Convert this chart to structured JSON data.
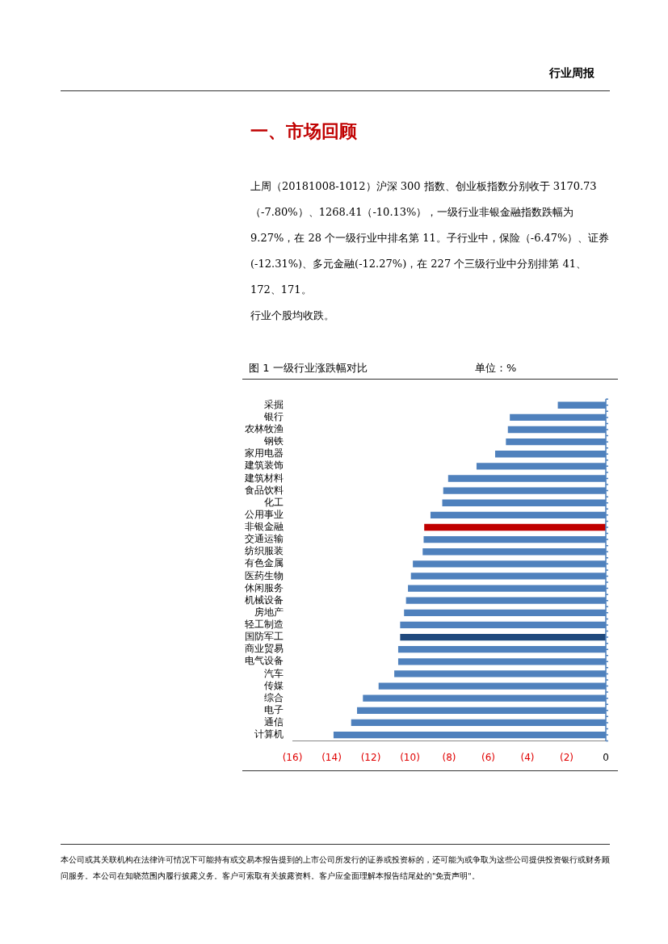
{
  "chart_data": {
    "type": "bar",
    "orientation": "horizontal",
    "title": "图 1 一级行业涨跌幅对比",
    "subtitle": "单位：%",
    "categories": [
      "采掘",
      "银行",
      "农林牧渔",
      "钢铁",
      "家用电器",
      "建筑装饰",
      "建筑材料",
      "食品饮料",
      "化工",
      "公用事业",
      "非银金融",
      "交通运输",
      "纺织服装",
      "有色金属",
      "医药生物",
      "休闲服务",
      "机械设备",
      "房地产",
      "轻工制造",
      "国防军工",
      "商业贸易",
      "电气设备",
      "汽车",
      "传媒",
      "综合",
      "电子",
      "通信",
      "计算机"
    ],
    "values": [
      -2.45,
      -4.9,
      -5.0,
      -5.1,
      -5.65,
      -6.6,
      -8.05,
      -8.3,
      -8.35,
      -8.95,
      -9.27,
      -9.3,
      -9.35,
      -9.85,
      -9.95,
      -10.1,
      -10.2,
      -10.3,
      -10.5,
      -10.5,
      -10.6,
      -10.6,
      -10.8,
      -11.6,
      -12.4,
      -12.7,
      -13.0,
      -13.9
    ],
    "colors": [
      "#4f81bd",
      "#4f81bd",
      "#4f81bd",
      "#4f81bd",
      "#4f81bd",
      "#4f81bd",
      "#4f81bd",
      "#4f81bd",
      "#4f81bd",
      "#4f81bd",
      "#c00000",
      "#4f81bd",
      "#4f81bd",
      "#4f81bd",
      "#4f81bd",
      "#4f81bd",
      "#4f81bd",
      "#4f81bd",
      "#4f81bd",
      "#1f497d",
      "#4f81bd",
      "#4f81bd",
      "#4f81bd",
      "#4f81bd",
      "#4f81bd",
      "#4f81bd",
      "#4f81bd",
      "#4f81bd"
    ],
    "xlim": [
      -16,
      0
    ],
    "xticks": [
      {
        "value": -16,
        "label": "(16)"
      },
      {
        "value": -14,
        "label": "(14)"
      },
      {
        "value": -12,
        "label": "(12)"
      },
      {
        "value": -10,
        "label": "(10)"
      },
      {
        "value": -8,
        "label": "(8)"
      },
      {
        "value": -6,
        "label": "(6)"
      },
      {
        "value": -4,
        "label": "(4)"
      },
      {
        "value": -2,
        "label": "(2)"
      },
      0
    ],
    "grid": false,
    "legend": false,
    "annotations": [
      "行业周报",
      "一、市场回顾",
      "上周（20181008-1012）沪深 300 指数、创业板指数分别收于 3170.73（-7.80%）、1268.41（-10.13%），一级行业非银金融指数跌幅为 9.27%，在 28 个一级行业中排名第 11。子行业中，保险（-6.47%）、证券(-12.31%)、多元金融(-12.27%)，在 227 个三级行业中分别排第 41、172、171。",
      "行业个股均收跌。",
      "本公司或其关联机构在法律许可情况下可能持有或交易本报告提到的上市公司所发行的证券或投资标的，还可能为或争取为这些公司提供投资银行或财务顾问服务。本公司在知晓范围内履行披露义务。客户可索取有关披露资料。客户应全面理解本报告结尾处的\"免责声明\"。"
    ]
  }
}
